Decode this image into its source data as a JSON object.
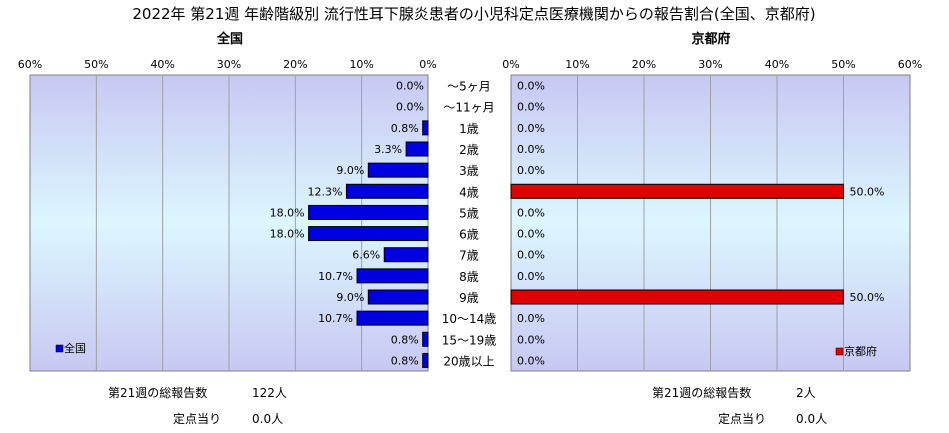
{
  "title": "2022年 第21週 年齢階級別 流行性耳下腺炎患者の小児科定点医療機関からの報告割合(全国、京都府)",
  "colors": {
    "national": "#0000e0",
    "kyoto": "#e00000"
  },
  "chart_data": [
    {
      "type": "bar",
      "orientation": "horizontal",
      "direction": "right-to-left",
      "subtitle": "全国",
      "legend": {
        "label": "全国",
        "position": "bottom-left"
      },
      "xlim": [
        0,
        60
      ],
      "ticks": [
        "60%",
        "50%",
        "40%",
        "30%",
        "20%",
        "10%",
        "0%"
      ],
      "categories": [
        "～5ヶ月",
        "～11ヶ月",
        "1歳",
        "2歳",
        "3歳",
        "4歳",
        "5歳",
        "6歳",
        "7歳",
        "8歳",
        "9歳",
        "10～14歳",
        "15～19歳",
        "20歳以上"
      ],
      "values": [
        0.0,
        0.0,
        0.8,
        3.3,
        9.0,
        12.3,
        18.0,
        18.0,
        6.6,
        10.7,
        9.0,
        10.7,
        0.8,
        0.8
      ],
      "value_labels": [
        "0.0%",
        "0.0%",
        "0.8%",
        "3.3%",
        "9.0%",
        "12.3%",
        "18.0%",
        "18.0%",
        "6.6%",
        "10.7%",
        "9.0%",
        "10.7%",
        "0.8%",
        "0.8%"
      ],
      "summary": {
        "total_label": "第21週の総報告数",
        "total_value": "122人",
        "per_site_label": "定点当り",
        "per_site_value": "0.0人"
      }
    },
    {
      "type": "bar",
      "orientation": "horizontal",
      "direction": "left-to-right",
      "subtitle": "京都府",
      "legend": {
        "label": "京都府",
        "position": "bottom-right"
      },
      "xlim": [
        0,
        60
      ],
      "ticks": [
        "0%",
        "10%",
        "20%",
        "30%",
        "40%",
        "50%",
        "60%"
      ],
      "categories": [
        "～5ヶ月",
        "～11ヶ月",
        "1歳",
        "2歳",
        "3歳",
        "4歳",
        "5歳",
        "6歳",
        "7歳",
        "8歳",
        "9歳",
        "10～14歳",
        "15～19歳",
        "20歳以上"
      ],
      "values": [
        0.0,
        0.0,
        0.0,
        0.0,
        0.0,
        50.0,
        0.0,
        0.0,
        0.0,
        0.0,
        50.0,
        0.0,
        0.0,
        0.0
      ],
      "value_labels": [
        "0.0%",
        "0.0%",
        "0.0%",
        "0.0%",
        "0.0%",
        "50.0%",
        "0.0%",
        "0.0%",
        "0.0%",
        "0.0%",
        "50.0%",
        "0.0%",
        "0.0%",
        "0.0%"
      ],
      "summary": {
        "total_label": "第21週の総報告数",
        "total_value": "2人",
        "per_site_label": "定点当り",
        "per_site_value": "0.0人"
      }
    }
  ]
}
